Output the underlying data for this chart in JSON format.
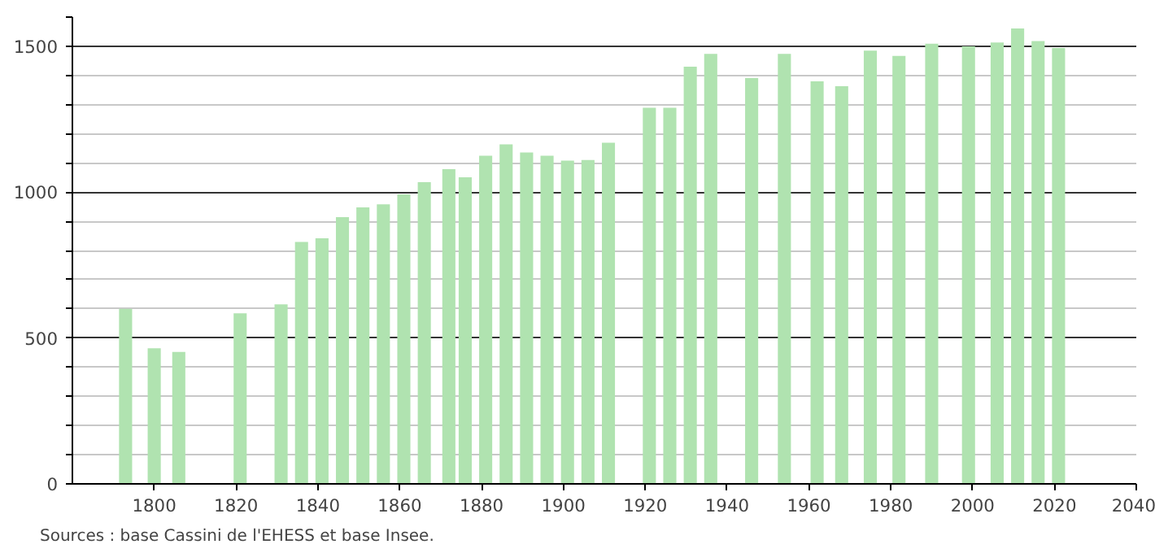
{
  "chart_data": {
    "type": "bar",
    "color": "#b0e3b0",
    "x": [
      1793,
      1800,
      1806,
      1821,
      1831,
      1836,
      1841,
      1846,
      1851,
      1856,
      1861,
      1866,
      1872,
      1876,
      1881,
      1886,
      1891,
      1896,
      1901,
      1906,
      1911,
      1921,
      1926,
      1931,
      1936,
      1946,
      1954,
      1962,
      1968,
      1975,
      1982,
      1990,
      1999,
      2006,
      2011,
      2016,
      2021
    ],
    "values": [
      600,
      465,
      452,
      585,
      615,
      829,
      842,
      914,
      948,
      958,
      992,
      1034,
      1079,
      1051,
      1125,
      1164,
      1136,
      1125,
      1108,
      1110,
      1169,
      1289,
      1289,
      1430,
      1474,
      1391,
      1474,
      1380,
      1363,
      1485,
      1467,
      1509,
      1500,
      1513,
      1561,
      1518,
      1494
    ],
    "xlim": [
      1780,
      2040
    ],
    "xticks": [
      1800,
      1820,
      1840,
      1860,
      1880,
      1900,
      1920,
      1940,
      1960,
      1980,
      2000,
      2020,
      2040
    ],
    "ylim": [
      0,
      1600
    ],
    "yticks": [
      0,
      {
        "value": 100,
        "label": null
      },
      {
        "value": 200,
        "label": null
      },
      {
        "value": 300,
        "label": null
      },
      {
        "value": 400,
        "label": null
      },
      500,
      {
        "value": 600,
        "label": null
      },
      {
        "value": 700,
        "label": null
      },
      {
        "value": 800,
        "label": null
      },
      {
        "value": 900,
        "label": null
      },
      1000,
      {
        "value": 1100,
        "label": null
      },
      {
        "value": 1200,
        "label": null
      },
      {
        "value": 1300,
        "label": null
      },
      {
        "value": 1400,
        "label": null
      },
      1500,
      {
        "value": 1600,
        "label": null
      }
    ],
    "grid": "y",
    "annotations": [
      "Sources : base Cassini de l'EHESS et base Insee."
    ]
  }
}
